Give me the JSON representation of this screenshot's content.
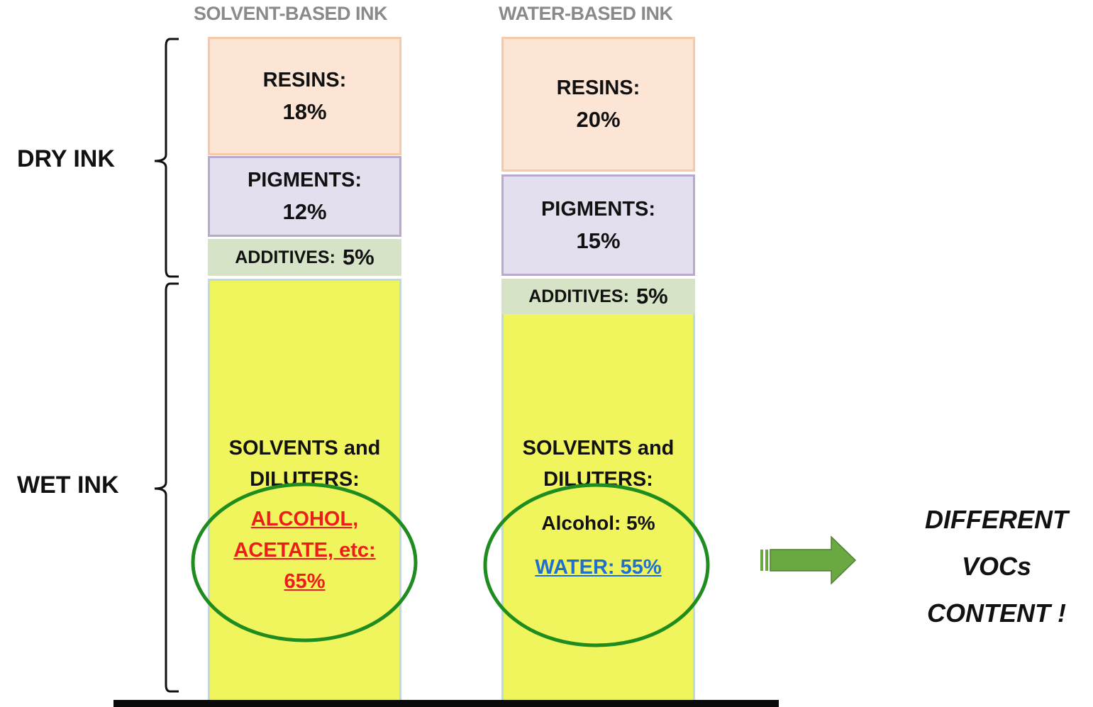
{
  "columns": [
    {
      "title": "SOLVENT-BASED INK",
      "resins": {
        "label": "RESINS:",
        "value": "18%"
      },
      "pigments": {
        "label": "PIGMENTS:",
        "value": "12%"
      },
      "additives": {
        "label": "ADDITIVES:",
        "value": "5%"
      },
      "wet": {
        "label_line1": "SOLVENTS and",
        "label_line2": "DILUTERS:",
        "line_a": "ALCOHOL,",
        "line_b": "ACETATE, etc:",
        "line_c": "65%"
      }
    },
    {
      "title": "WATER-BASED INK",
      "resins": {
        "label": "RESINS:",
        "value": "20%"
      },
      "pigments": {
        "label": "PIGMENTS:",
        "value": "15%"
      },
      "additives": {
        "label": "ADDITIVES:",
        "value": "5%"
      },
      "wet": {
        "label_line1": "SOLVENTS and",
        "label_line2": "DILUTERS:",
        "line_a": "Alcohol: 5%",
        "line_b": "WATER: 55%"
      }
    }
  ],
  "brackets": {
    "dry": "DRY INK",
    "wet": "WET INK"
  },
  "conclusion": {
    "line1": "DIFFERENT",
    "line2": "VOCs",
    "line3": "CONTENT !"
  },
  "colors": {
    "resins": "#fde5d6",
    "pigments": "#e4dfee",
    "additives": "#d6e3c6",
    "wet": "#f0f55d",
    "circle": "#1e8c1e",
    "arrow": "#6aa842",
    "solvent_text": "#ee1c1c",
    "water_text": "#1f6fd0"
  }
}
